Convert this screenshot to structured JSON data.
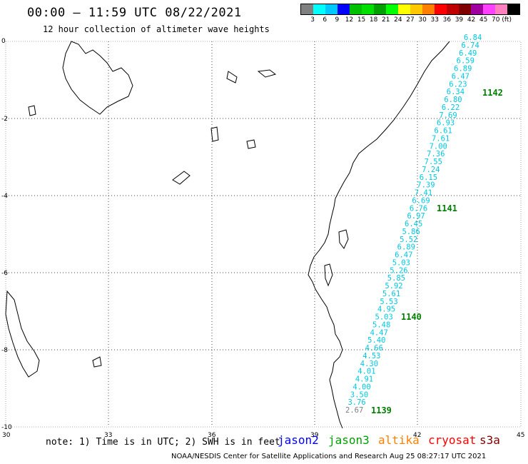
{
  "title": "00:00 – 11:59 UTC 08/22/2021",
  "subtitle": "12 hour collection of altimeter wave heights",
  "legend": {
    "unit": "(ft)",
    "colors": [
      "#808080",
      "#00ffff",
      "#00c8ff",
      "#0000ff",
      "#00c000",
      "#00e000",
      "#00a000",
      "#00ff00",
      "#ffff00",
      "#ffc800",
      "#ff8000",
      "#ff0000",
      "#c00000",
      "#800000",
      "#a000a0",
      "#ff40ff",
      "#ff80c0",
      "#000000"
    ],
    "labels": [
      "3",
      "6",
      "9",
      "12",
      "15",
      "18",
      "21",
      "24",
      "27",
      "30",
      "33",
      "36",
      "39",
      "42",
      "45",
      "70"
    ]
  },
  "axes": {
    "lon_ticks": [
      "30",
      "33",
      "36",
      "39",
      "42",
      "45"
    ],
    "lat_ticks": [
      "0",
      "-2",
      "-4",
      "-6",
      "-8",
      "-10"
    ]
  },
  "track": {
    "values": [
      "6.84",
      "6.74",
      "6.49",
      "6.59",
      "6.89",
      "6.47",
      "6.23",
      "6.34",
      "6.80",
      "6.22",
      "7.69",
      "6.93",
      "6.61",
      "7.61",
      "7.00",
      "7.36",
      "7.55",
      "7.24",
      "6.15",
      "7.39",
      "7.41",
      "6.69",
      "6.76",
      "6.97",
      "6.45",
      "5.86",
      "5.52",
      "6.89",
      "6.47",
      "5.03",
      "5.26",
      "5.85",
      "5.92",
      "5.61",
      "5.53",
      "4.95",
      "5.03",
      "5.48",
      "4.47",
      "5.40",
      "4.66",
      "4.53",
      "4.30",
      "4.01",
      "4.91",
      "4.00",
      "3.50",
      "3.76",
      "2.67"
    ],
    "pass_labels": [
      "1142",
      "1141",
      "1140",
      "1139"
    ]
  },
  "note": "note: 1) Time is in UTC; 2) SWH is in feet",
  "satellites": [
    {
      "name": "jason2",
      "color": "#0000ff"
    },
    {
      "name": "jason3",
      "color": "#00a000"
    },
    {
      "name": "altika",
      "color": "#ff8000"
    },
    {
      "name": "cryosat",
      "color": "#ff0000"
    },
    {
      "name": "s3a",
      "color": "#800000"
    }
  ],
  "footer": "NOAA/NESDIS Center for Satellite Applications and Research   Aug 25 08:27:17 UTC 2021",
  "colors": {
    "track_text": "#00c8e0",
    "low_text": "#808080",
    "pass_label": "#008000"
  }
}
